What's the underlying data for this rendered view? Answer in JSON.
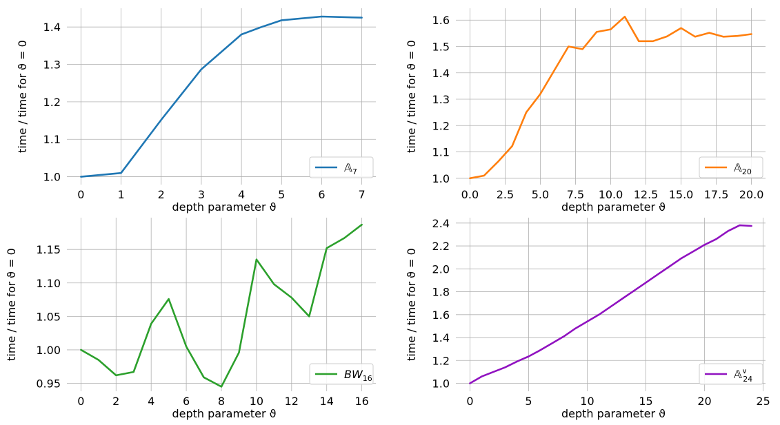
{
  "chart_data": [
    {
      "type": "line",
      "xlabel": "depth parameter ϑ",
      "ylabel": "time / time for ϑ = 0",
      "xlim": [
        -0.35,
        7.35
      ],
      "ylim": [
        0.979,
        1.45
      ],
      "xticks": [
        0,
        1,
        2,
        3,
        4,
        5,
        6,
        7
      ],
      "xtick_labels": [
        "0",
        "1",
        "2",
        "3",
        "4",
        "5",
        "6",
        "7"
      ],
      "yticks": [
        1.0,
        1.1,
        1.2,
        1.3,
        1.4
      ],
      "ytick_labels": [
        "1.0",
        "1.1",
        "1.2",
        "1.3",
        "1.4"
      ],
      "grid": true,
      "legend_position": "lower-right",
      "series": [
        {
          "name": "𝔸",
          "name_sub": "7",
          "name_sup": "",
          "color": "#1f77b4",
          "x": [
            0,
            1,
            2,
            3,
            4,
            4.5,
            5,
            6,
            7
          ],
          "y": [
            1.0,
            1.01,
            1.152,
            1.287,
            1.38,
            1.4,
            1.418,
            1.428,
            1.425
          ]
        }
      ]
    },
    {
      "type": "line",
      "xlabel": "depth parameter ϑ",
      "ylabel": "time / time for ϑ = 0",
      "xlim": [
        -1.0,
        21.0
      ],
      "ylim": [
        0.976,
        1.645
      ],
      "xticks": [
        0,
        2.5,
        5,
        7.5,
        10,
        12.5,
        15,
        17.5,
        20
      ],
      "xtick_labels": [
        "0.0",
        "2.5",
        "5.0",
        "7.5",
        "10.0",
        "12.5",
        "15.0",
        "17.5",
        "20.0"
      ],
      "yticks": [
        1.0,
        1.1,
        1.2,
        1.3,
        1.4,
        1.5,
        1.6
      ],
      "ytick_labels": [
        "1.0",
        "1.1",
        "1.2",
        "1.3",
        "1.4",
        "1.5",
        "1.6"
      ],
      "grid": true,
      "legend_position": "lower-right",
      "series": [
        {
          "name": "𝔸",
          "name_sub": "20",
          "name_sup": "",
          "color": "#ff7f0e",
          "x": [
            0,
            1,
            2,
            3,
            4,
            5,
            6,
            7,
            8,
            9,
            10,
            11,
            12,
            13,
            14,
            15,
            16,
            17,
            18,
            19,
            20
          ],
          "y": [
            1.0,
            1.01,
            1.063,
            1.122,
            1.25,
            1.32,
            1.41,
            1.5,
            1.49,
            1.555,
            1.565,
            1.613,
            1.52,
            1.52,
            1.538,
            1.57,
            1.537,
            1.552,
            1.537,
            1.54,
            1.547
          ]
        }
      ]
    },
    {
      "type": "line",
      "xlabel": "depth parameter ϑ",
      "ylabel": "time / time for ϑ = 0",
      "xlim": [
        -0.8,
        16.8
      ],
      "ylim": [
        0.9382,
        1.1975
      ],
      "xticks": [
        0,
        2,
        4,
        6,
        8,
        10,
        12,
        14,
        16
      ],
      "xtick_labels": [
        "0",
        "2",
        "4",
        "6",
        "8",
        "10",
        "12",
        "14",
        "16"
      ],
      "yticks": [
        0.95,
        1.0,
        1.05,
        1.1,
        1.15
      ],
      "ytick_labels": [
        "0.95",
        "1.00",
        "1.05",
        "1.10",
        "1.15"
      ],
      "grid": true,
      "legend_position": "lower-right",
      "series": [
        {
          "name": "BW",
          "name_sub": "16",
          "name_sup": "",
          "color": "#2ca02c",
          "x": [
            0,
            1,
            2,
            3,
            4,
            5,
            6,
            7,
            8,
            9,
            10,
            11,
            12,
            13,
            14,
            15,
            16
          ],
          "y": [
            1.0,
            0.985,
            0.962,
            0.967,
            1.039,
            1.076,
            1.005,
            0.959,
            0.945,
            0.996,
            1.135,
            1.098,
            1.078,
            1.05,
            1.152,
            1.167,
            1.187
          ]
        }
      ]
    },
    {
      "type": "line",
      "xlabel": "depth parameter ϑ",
      "ylabel": "time / time for ϑ = 0",
      "xlim": [
        -1.2,
        25.2
      ],
      "ylim": [
        0.931,
        2.447
      ],
      "xticks": [
        0,
        5,
        10,
        15,
        20,
        25
      ],
      "xtick_labels": [
        "0",
        "5",
        "10",
        "15",
        "20",
        "25"
      ],
      "yticks": [
        1.0,
        1.2,
        1.4,
        1.6,
        1.8,
        2.0,
        2.2,
        2.4
      ],
      "ytick_labels": [
        "1.0",
        "1.2",
        "1.4",
        "1.6",
        "1.8",
        "2.0",
        "2.2",
        "2.4"
      ],
      "grid": true,
      "legend_position": "lower-right",
      "series": [
        {
          "name": "𝔸",
          "name_sub": "24",
          "name_sup": "∨",
          "color": "#9012c0",
          "x": [
            0,
            1,
            2,
            3,
            4,
            5,
            6,
            7,
            8,
            9,
            10,
            11,
            12,
            13,
            14,
            15,
            16,
            17,
            18,
            19,
            20,
            21,
            22,
            23,
            24
          ],
          "y": [
            1.0,
            1.06,
            1.1,
            1.14,
            1.19,
            1.235,
            1.29,
            1.35,
            1.41,
            1.48,
            1.54,
            1.6,
            1.67,
            1.74,
            1.81,
            1.88,
            1.95,
            2.02,
            2.09,
            2.15,
            2.21,
            2.26,
            2.33,
            2.38,
            2.375
          ]
        }
      ]
    }
  ]
}
